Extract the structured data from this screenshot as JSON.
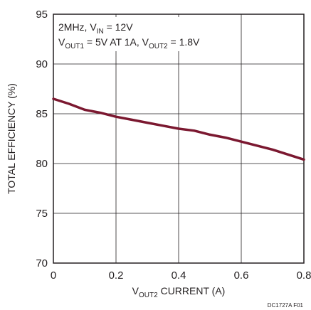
{
  "chart_data": {
    "type": "line",
    "xlabel": {
      "main": "V",
      "sub": "OUT2",
      "rest": " CURRENT (A)"
    },
    "ylabel": "TOTAL EFFICIENCY (%)",
    "xlim": [
      0,
      0.8
    ],
    "ylim": [
      70,
      95
    ],
    "x_ticks": [
      "0",
      "0.2",
      "0.4",
      "0.6",
      "0.8"
    ],
    "y_ticks": [
      "70",
      "75",
      "80",
      "85",
      "90",
      "95"
    ],
    "grid": true,
    "annotation": {
      "line1": {
        "a": "2MHz, V",
        "b": "IN",
        "c": " = 12V"
      },
      "line2": {
        "a": "V",
        "b": "OUT1",
        "c": " = 5V AT 1A, V",
        "d": "OUT2",
        "e": " = 1.8V"
      }
    },
    "series": [
      {
        "color": "#7b1830",
        "x": [
          0,
          0.05,
          0.1,
          0.15,
          0.2,
          0.25,
          0.3,
          0.35,
          0.4,
          0.45,
          0.5,
          0.55,
          0.6,
          0.65,
          0.7,
          0.75,
          0.8
        ],
        "y": [
          86.5,
          86.0,
          85.4,
          85.1,
          84.7,
          84.4,
          84.1,
          83.8,
          83.5,
          83.3,
          82.9,
          82.6,
          82.2,
          81.8,
          81.4,
          80.9,
          80.4
        ]
      }
    ]
  },
  "figure_id": "DC1727A F01"
}
